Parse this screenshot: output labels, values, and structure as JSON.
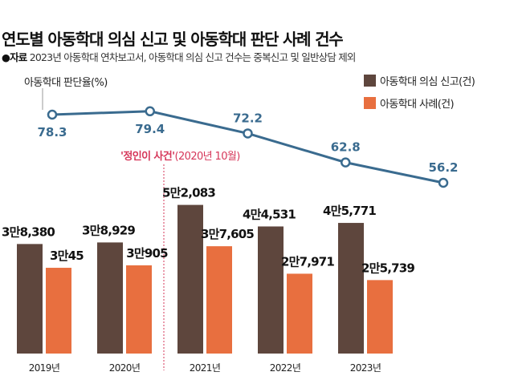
{
  "title": "연도별 아동학대 의심 신고 및 아동학대 판단 사례 건수",
  "source_label": "●자료",
  "source_text": "2023년 아동학대 연차보고서, 아동학대 의심 신고 건수는 중복신고 및 일반상담 제외",
  "colors": {
    "reports": "#5e463d",
    "cases": "#e86f3f",
    "rate_line": "#3a6b8f",
    "annotation": "#d6375a"
  },
  "chart_data": {
    "type": "bar+line",
    "categories": [
      "2019년",
      "2020년",
      "2021년",
      "2022년",
      "2023년"
    ],
    "series": [
      {
        "name": "아동학대 의심 신고(건)",
        "type": "bar",
        "values": [
          38380,
          38929,
          52083,
          44531,
          45771
        ],
        "labels": [
          "3만8,380",
          "3만8,929",
          "5만2,083",
          "4만4,531",
          "4만5,771"
        ]
      },
      {
        "name": "아동학대 사례(건)",
        "type": "bar",
        "values": [
          30045,
          30905,
          37605,
          27971,
          25739
        ],
        "labels": [
          "3만45",
          "3만905",
          "3만7,605",
          "2만7,971",
          "2만5,739"
        ]
      },
      {
        "name": "아동학대 판단율(%)",
        "type": "line",
        "values": [
          78.3,
          79.4,
          72.2,
          62.8,
          56.2
        ],
        "labels": [
          "78.3",
          "79.4",
          "72.2",
          "62.8",
          "56.2"
        ]
      }
    ],
    "annotation": {
      "bold": "'정인이 사건'",
      "text": "(2020년 10월)",
      "between": [
        "2020년",
        "2021년"
      ]
    },
    "legend": "top-right",
    "grid": false
  }
}
